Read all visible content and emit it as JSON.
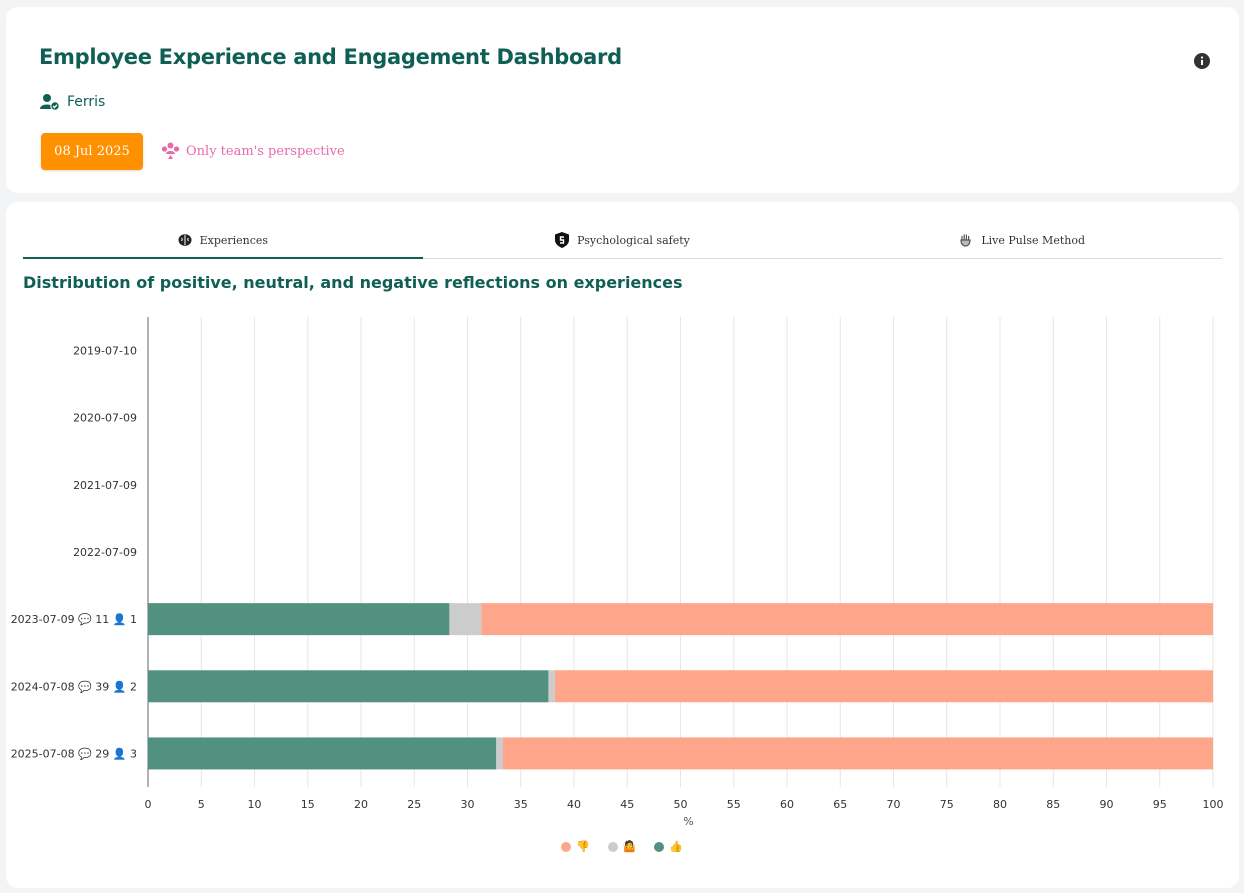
{
  "header": {
    "title": "Employee Experience and Engagement Dashboard",
    "team_name": "Ferris",
    "date_button": "08 Jul 2025",
    "perspective_label": "Only team's perspective"
  },
  "tabs": [
    {
      "label": "Experiences",
      "icon": "brain-icon",
      "active": true
    },
    {
      "label": "Psychological safety",
      "icon": "shield-icon",
      "active": false
    },
    {
      "label": "Live Pulse Method",
      "icon": "pulse-hand-icon",
      "active": false
    }
  ],
  "colors": {
    "accent": "#0f5f55",
    "button": "#ff9100",
    "perspective": "#ea6aa9",
    "positive": "#52907f",
    "neutral": "#cccccc",
    "negative": "#ffa58a"
  },
  "chart_data": {
    "type": "bar",
    "orientation": "horizontal",
    "stacked": true,
    "title": "Distribution of positive, neutral, and negative reflections on experiences",
    "xlabel": "%",
    "xlim": [
      0,
      100
    ],
    "xticks": [
      0,
      5,
      10,
      15,
      20,
      25,
      30,
      35,
      40,
      45,
      50,
      55,
      60,
      65,
      70,
      75,
      80,
      85,
      90,
      95,
      100
    ],
    "grid": true,
    "legend_position": "bottom",
    "categories": [
      "2019-07-10",
      "2020-07-09",
      "2021-07-09",
      "2022-07-09",
      "2023-07-09 💬 11 👤 1",
      "2024-07-08 💬 39 👤 2",
      "2025-07-08 💬 29 👤 3"
    ],
    "series": [
      {
        "name": "👍",
        "color": "#52907f",
        "values": [
          0,
          0,
          0,
          0,
          28.3,
          37.6,
          32.7
        ]
      },
      {
        "name": "🤷",
        "color": "#cccccc",
        "values": [
          0,
          0,
          0,
          0,
          3.0,
          0.6,
          0.6
        ]
      },
      {
        "name": "👎",
        "color": "#ffa58a",
        "values": [
          0,
          0,
          0,
          0,
          68.7,
          61.8,
          66.7
        ]
      }
    ],
    "legend": [
      {
        "label": "👎",
        "color": "#ffa58a"
      },
      {
        "label": "🤷",
        "color": "#cccccc"
      },
      {
        "label": "👍",
        "color": "#52907f"
      }
    ]
  }
}
